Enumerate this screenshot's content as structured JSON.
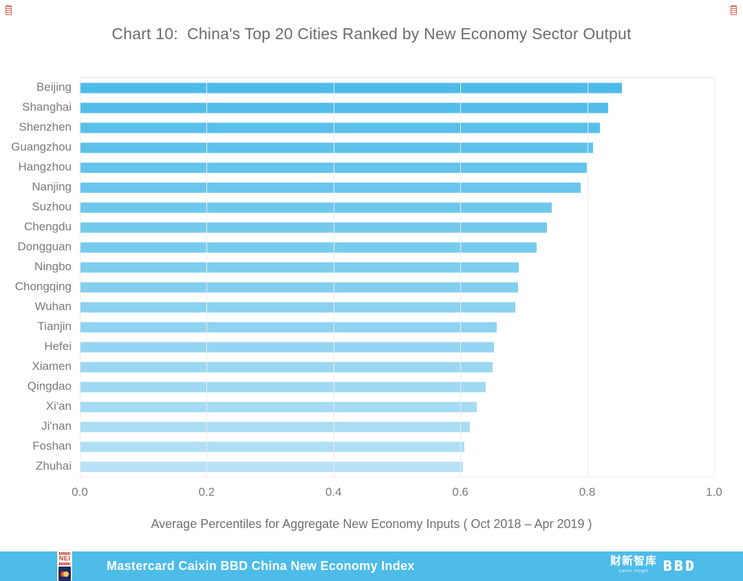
{
  "title": "Chart 10:  China's Top 20 Cities Ranked by New Economy Sector Output",
  "chart_data": {
    "type": "bar",
    "orientation": "horizontal",
    "title": "Chart 10:  China's Top 20 Cities Ranked by New Economy Sector Output",
    "categories": [
      "Beijing",
      "Shanghai",
      "Shenzhen",
      "Guangzhou",
      "Hangzhou",
      "Nanjing",
      "Suzhou",
      "Chengdu",
      "Dongguan",
      "Ningbo",
      "Chongqing",
      "Wuhan",
      "Tianjin",
      "Hefei",
      "Xiamen",
      "Qingdao",
      "Xi'an",
      "Ji'nan",
      "Foshan",
      "Zhuhai"
    ],
    "values": [
      0.855,
      0.833,
      0.82,
      0.809,
      0.799,
      0.79,
      0.744,
      0.736,
      0.72,
      0.692,
      0.691,
      0.687,
      0.657,
      0.653,
      0.651,
      0.64,
      0.626,
      0.615,
      0.606,
      0.604
    ],
    "bar_colors": [
      "#4DBBE8",
      "#53BDE9",
      "#58BFE9",
      "#5EC1EA",
      "#63C3EB",
      "#69C5EC",
      "#6EC7EC",
      "#74C9ED",
      "#79CBEE",
      "#7FCDEF",
      "#84CFEF",
      "#8AD1F0",
      "#8FD3F1",
      "#95D5F2",
      "#9AD7F2",
      "#A0D9F3",
      "#A5DBF4",
      "#ABDDF4",
      "#B0DFF5",
      "#B6E1F6"
    ],
    "xlabel": "Average Percentiles for Aggregate New Economy Inputs  ( Oct 2018 – Apr 2019 )",
    "xlim": [
      0.0,
      1.0
    ],
    "xtick_labels": [
      "0.0",
      "0.2",
      "0.4",
      "0.6",
      "0.8",
      "1.0"
    ],
    "grid": "vertical",
    "legend": "none"
  },
  "footer": {
    "band_color": "#4DBCE9",
    "title": "Mastercard Caixin BBD China New Economy Index",
    "nei_logo_text": "NEI",
    "caixin_logo_cn": "财新智库",
    "caixin_logo_en": "Caixin Insight",
    "bbd_logo_text": "BBD"
  },
  "colors": {
    "title_text": "#6b6b6b",
    "axis_text": "#7a7a7a",
    "gridline": "#ededed",
    "corner_mark": "#d2493a"
  }
}
